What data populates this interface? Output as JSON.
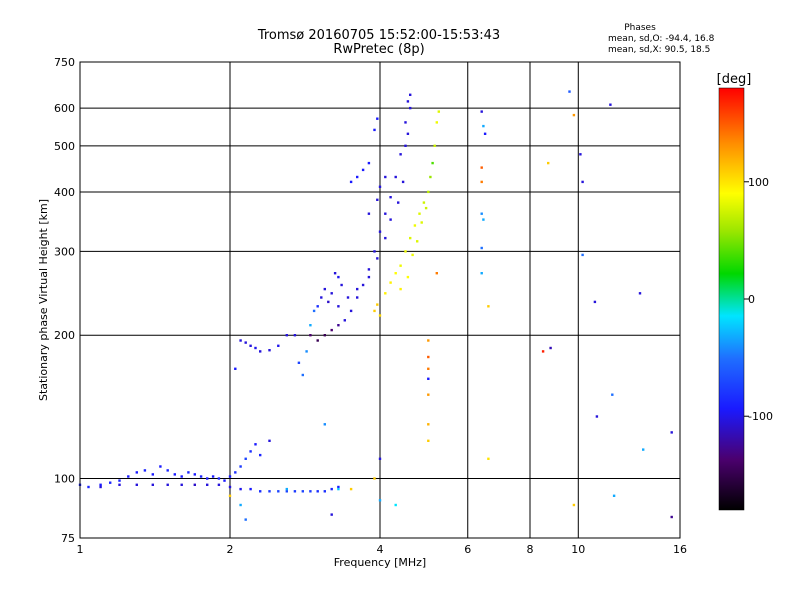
{
  "header": {
    "title_line1": "Tromsø 20160705 15:52:00-15:53:43",
    "title_line2": "RwPretec (8p)",
    "phase_title": "Phases",
    "phase_o": "mean, sd,O: -94.4, 16.8",
    "phase_x": "mean, sd,X:  90.5, 18.5"
  },
  "chart_data": {
    "type": "scatter",
    "xlabel": "Frequency [MHz]",
    "ylabel": "Stationary phase Virtual Height [km]",
    "xscale": "log",
    "yscale": "log",
    "xlim": [
      1,
      16
    ],
    "ylim": [
      75,
      750
    ],
    "x_ticks": [
      1,
      2,
      4,
      6,
      8,
      10,
      16
    ],
    "y_ticks": [
      75,
      100,
      200,
      300,
      400,
      500,
      600,
      750
    ],
    "grid": true,
    "colorbar": {
      "label": "[deg]",
      "range": [
        -180,
        180
      ],
      "ticks": [
        100,
        0,
        -100
      ]
    },
    "series": [
      {
        "comment_kind": "O-mode trace",
        "points": [
          [
            1.0,
            97,
            -95
          ],
          [
            1.04,
            96,
            -95
          ],
          [
            1.1,
            97,
            -100
          ],
          [
            1.15,
            98,
            -95
          ],
          [
            1.2,
            99,
            -95
          ],
          [
            1.25,
            101,
            -100
          ],
          [
            1.3,
            103,
            -100
          ],
          [
            1.35,
            104,
            -95
          ],
          [
            1.4,
            102,
            -100
          ],
          [
            1.45,
            106,
            -100
          ],
          [
            1.5,
            104,
            -95
          ],
          [
            1.55,
            102,
            -100
          ],
          [
            1.6,
            101,
            -100
          ],
          [
            1.65,
            103,
            -95
          ],
          [
            1.7,
            102,
            -100
          ],
          [
            1.75,
            101,
            -95
          ],
          [
            1.8,
            100,
            -100
          ],
          [
            1.85,
            101,
            -100
          ],
          [
            1.9,
            100,
            -95
          ],
          [
            1.95,
            99,
            -100
          ],
          [
            2.0,
            101,
            -100
          ],
          [
            2.05,
            103,
            -90
          ],
          [
            2.1,
            106,
            -85
          ],
          [
            2.15,
            110,
            -80
          ],
          [
            2.2,
            114,
            -90
          ],
          [
            2.25,
            118,
            -100
          ],
          [
            2.3,
            112,
            -95
          ],
          [
            1.1,
            96,
            -110
          ],
          [
            1.2,
            97,
            -110
          ],
          [
            1.3,
            97,
            -110
          ],
          [
            1.4,
            97,
            -110
          ],
          [
            1.5,
            97,
            -110
          ],
          [
            1.6,
            97,
            -110
          ],
          [
            1.7,
            97,
            -115
          ],
          [
            1.8,
            97,
            -110
          ],
          [
            1.9,
            97,
            -110
          ],
          [
            2.0,
            96,
            -110
          ],
          [
            2.1,
            95,
            -105
          ],
          [
            2.2,
            95,
            -100
          ],
          [
            2.3,
            94,
            -90
          ],
          [
            2.4,
            94,
            -85
          ],
          [
            2.5,
            94,
            -80
          ],
          [
            2.6,
            94,
            -80
          ],
          [
            2.7,
            94,
            -85
          ],
          [
            2.8,
            94,
            -80
          ],
          [
            2.9,
            94,
            -85
          ],
          [
            3.0,
            94,
            -90
          ],
          [
            3.1,
            94,
            -90
          ],
          [
            3.2,
            95,
            -95
          ],
          [
            3.3,
            96,
            -100
          ],
          [
            2.05,
            170,
            -100
          ],
          [
            2.1,
            195,
            -110
          ],
          [
            2.15,
            193,
            -110
          ],
          [
            2.2,
            190,
            -110
          ],
          [
            2.25,
            188,
            -105
          ],
          [
            2.3,
            185,
            -110
          ],
          [
            2.4,
            186,
            -110
          ],
          [
            2.5,
            190,
            -105
          ],
          [
            2.6,
            200,
            -110
          ],
          [
            2.7,
            200,
            -110
          ],
          [
            2.75,
            175,
            -80
          ],
          [
            2.8,
            165,
            -60
          ],
          [
            2.85,
            185,
            -50
          ],
          [
            2.9,
            210,
            -40
          ],
          [
            2.95,
            225,
            -60
          ],
          [
            3.0,
            230,
            -90
          ],
          [
            3.05,
            240,
            -110
          ],
          [
            3.1,
            250,
            -110
          ],
          [
            3.15,
            235,
            -115
          ],
          [
            3.2,
            245,
            -110
          ],
          [
            3.25,
            270,
            -110
          ],
          [
            3.3,
            265,
            -105
          ],
          [
            3.35,
            255,
            -110
          ],
          [
            2.9,
            200,
            -140
          ],
          [
            3.0,
            195,
            -150
          ],
          [
            3.1,
            200,
            -150
          ],
          [
            3.2,
            205,
            -140
          ],
          [
            3.3,
            210,
            -130
          ],
          [
            3.4,
            215,
            -110
          ],
          [
            3.5,
            225,
            -110
          ],
          [
            3.6,
            240,
            -110
          ],
          [
            3.7,
            255,
            -110
          ],
          [
            3.8,
            275,
            -110
          ],
          [
            3.9,
            300,
            -110
          ],
          [
            4.0,
            330,
            -110
          ],
          [
            4.1,
            360,
            -110
          ],
          [
            4.2,
            390,
            -110
          ],
          [
            4.3,
            430,
            -110
          ],
          [
            4.4,
            480,
            -110
          ],
          [
            4.5,
            560,
            -110
          ],
          [
            4.55,
            620,
            -110
          ],
          [
            4.6,
            640,
            -110
          ],
          [
            3.3,
            230,
            -110
          ],
          [
            3.45,
            240,
            -110
          ],
          [
            3.6,
            250,
            -110
          ],
          [
            3.8,
            265,
            -110
          ],
          [
            3.95,
            290,
            -110
          ],
          [
            4.1,
            320,
            -110
          ],
          [
            4.2,
            350,
            -110
          ],
          [
            4.35,
            380,
            -110
          ],
          [
            4.45,
            420,
            -110
          ],
          [
            4.5,
            500,
            -110
          ],
          [
            4.55,
            530,
            -110
          ],
          [
            4.6,
            600,
            -110
          ],
          [
            3.5,
            420,
            -100
          ],
          [
            3.6,
            430,
            -100
          ],
          [
            3.7,
            445,
            -100
          ],
          [
            3.8,
            460,
            -100
          ],
          [
            3.9,
            540,
            -100
          ],
          [
            3.95,
            570,
            -100
          ],
          [
            3.8,
            360,
            -110
          ],
          [
            3.95,
            385,
            -110
          ],
          [
            4.0,
            410,
            -110
          ],
          [
            4.1,
            430,
            -110
          ]
        ]
      },
      {
        "comment_kind": "X-mode trace",
        "points": [
          [
            3.9,
            225,
            110
          ],
          [
            3.95,
            232,
            110
          ],
          [
            4.0,
            220,
            105
          ],
          [
            4.1,
            245,
            95
          ],
          [
            4.2,
            258,
            95
          ],
          [
            4.3,
            270,
            90
          ],
          [
            4.4,
            280,
            85
          ],
          [
            4.5,
            300,
            85
          ],
          [
            4.6,
            320,
            80
          ],
          [
            4.7,
            340,
            85
          ],
          [
            4.8,
            360,
            80
          ],
          [
            4.9,
            380,
            75
          ],
          [
            5.0,
            400,
            70
          ],
          [
            5.05,
            430,
            60
          ],
          [
            5.1,
            460,
            40
          ],
          [
            5.15,
            500,
            75
          ],
          [
            5.2,
            560,
            85
          ],
          [
            5.25,
            590,
            80
          ],
          [
            4.4,
            250,
            95
          ],
          [
            4.55,
            265,
            90
          ],
          [
            4.65,
            295,
            85
          ],
          [
            4.75,
            315,
            80
          ],
          [
            4.85,
            345,
            80
          ],
          [
            4.95,
            370,
            75
          ]
        ]
      },
      {
        "comment_kind": "scattered echoes",
        "points": [
          [
            5.0,
            195,
            130
          ],
          [
            5.0,
            180,
            150
          ],
          [
            5.0,
            170,
            140
          ],
          [
            5.0,
            162,
            -100
          ],
          [
            5.0,
            150,
            130
          ],
          [
            5.0,
            130,
            120
          ],
          [
            5.0,
            120,
            110
          ],
          [
            5.2,
            270,
            140
          ],
          [
            6.4,
            590,
            -110
          ],
          [
            6.45,
            550,
            -40
          ],
          [
            6.5,
            530,
            -100
          ],
          [
            6.4,
            450,
            150
          ],
          [
            6.4,
            420,
            140
          ],
          [
            6.4,
            360,
            -50
          ],
          [
            6.45,
            350,
            -40
          ],
          [
            6.4,
            305,
            -60
          ],
          [
            6.4,
            270,
            -40
          ],
          [
            6.6,
            230,
            110
          ],
          [
            6.6,
            110,
            100
          ],
          [
            8.5,
            185,
            170
          ],
          [
            8.8,
            188,
            -120
          ],
          [
            8.7,
            460,
            110
          ],
          [
            9.6,
            650,
            -70
          ],
          [
            9.8,
            580,
            130
          ],
          [
            9.8,
            88,
            110
          ],
          [
            10.1,
            480,
            -110
          ],
          [
            10.2,
            420,
            -110
          ],
          [
            10.2,
            295,
            -60
          ],
          [
            10.8,
            235,
            -110
          ],
          [
            10.9,
            135,
            -110
          ],
          [
            11.6,
            610,
            -110
          ],
          [
            11.7,
            150,
            -60
          ],
          [
            11.8,
            92,
            -40
          ],
          [
            13.3,
            245,
            -110
          ],
          [
            13.5,
            115,
            -40
          ],
          [
            15.4,
            125,
            -110
          ],
          [
            15.4,
            83,
            -130
          ],
          [
            2.6,
            95,
            -40
          ],
          [
            3.3,
            95,
            -30
          ],
          [
            3.5,
            95,
            110
          ],
          [
            3.9,
            100,
            110
          ],
          [
            4.0,
            110,
            -110
          ],
          [
            4.3,
            88,
            -20
          ],
          [
            4.0,
            90,
            -40
          ],
          [
            3.2,
            84,
            -110
          ],
          [
            2.4,
            120,
            -110
          ],
          [
            3.1,
            130,
            -50
          ],
          [
            2.1,
            88,
            -40
          ],
          [
            2.0,
            92,
            110
          ],
          [
            2.15,
            82,
            -60
          ]
        ]
      }
    ]
  }
}
